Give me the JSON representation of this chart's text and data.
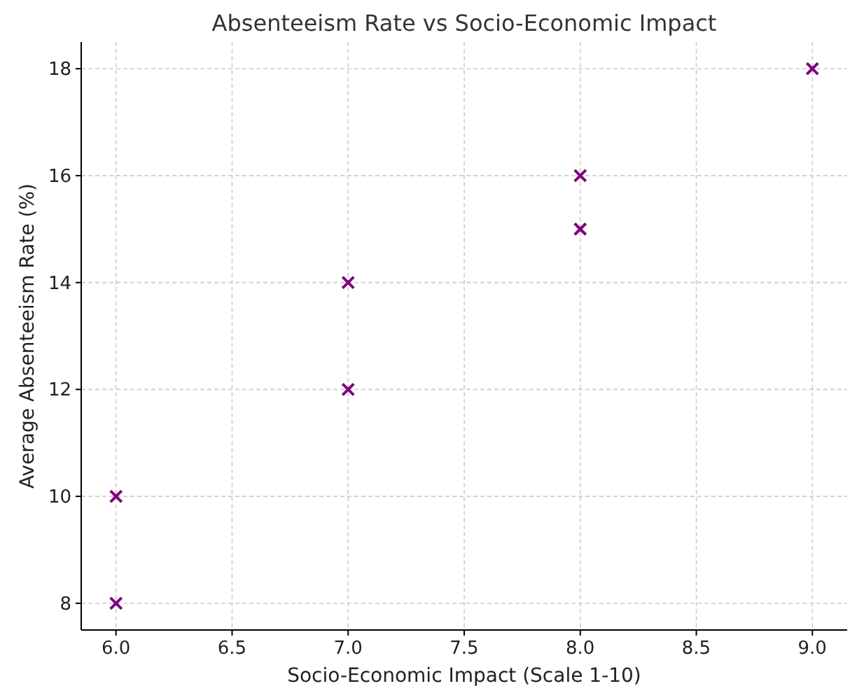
{
  "chart_data": {
    "type": "scatter",
    "title": "Absenteeism Rate vs Socio-Economic Impact",
    "xlabel": "Socio-Economic Impact (Scale 1-10)",
    "ylabel": "Average Absenteeism Rate (%)",
    "x": [
      6,
      6,
      7,
      7,
      8,
      8,
      9
    ],
    "series": [
      {
        "color": "#800080",
        "values": [
          8,
          10,
          12,
          14,
          15,
          16,
          18
        ]
      }
    ],
    "xlim": [
      5.85,
      9.15
    ],
    "ylim": [
      7.5,
      18.5
    ],
    "xticks": [
      {
        "value": 6,
        "label": "6.0"
      },
      {
        "value": 6.5,
        "label": "6.5"
      },
      {
        "value": 7,
        "label": "7.0"
      },
      {
        "value": 7.5,
        "label": "7.5"
      },
      {
        "value": 8,
        "label": "8.0"
      },
      {
        "value": 8.5,
        "label": "8.5"
      },
      {
        "value": 9,
        "label": "9.0"
      }
    ],
    "yticks": [
      8,
      10,
      12,
      14,
      16,
      18
    ],
    "grid": true,
    "marker": "cross"
  }
}
